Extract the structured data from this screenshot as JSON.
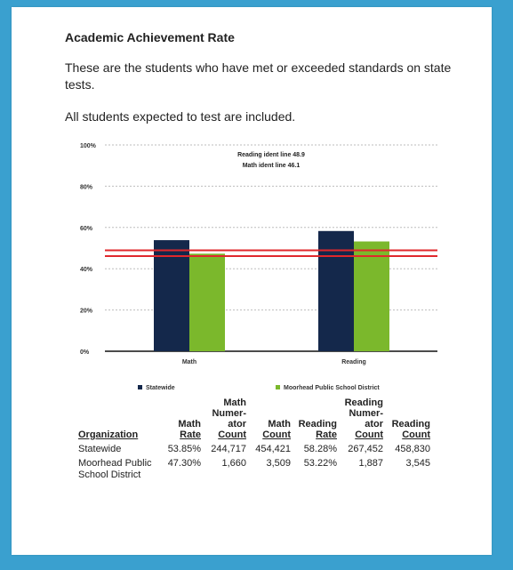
{
  "heading": "Academic Achievement Rate",
  "paragraph1": "These are the students who have met or exceeded standards on state tests.",
  "paragraph2": "All students expected to test are included.",
  "chart_data": {
    "type": "bar",
    "categories": [
      "Math",
      "Reading"
    ],
    "series": [
      {
        "name": "Statewide",
        "values": [
          53.85,
          58.28
        ],
        "color": "#14284b"
      },
      {
        "name": "Moorhead Public School District",
        "values": [
          47.3,
          53.22
        ],
        "color": "#7bb82c"
      }
    ],
    "ylim": [
      0,
      100
    ],
    "yticks": [
      0,
      20,
      40,
      60,
      80,
      100
    ],
    "ytick_labels": [
      "0%",
      "20%",
      "40%",
      "60%",
      "80%",
      "100%"
    ],
    "grid": true,
    "legend": "bottom",
    "reference_lines": [
      {
        "label": "Reading ident line 48.9",
        "value": 48.9,
        "color": "#e0282c"
      },
      {
        "label": "Math ident line 46.1",
        "value": 46.1,
        "color": "#e0282c"
      }
    ]
  },
  "table": {
    "headers": [
      "Organization",
      "Math Rate",
      "Math Numer-ator Count",
      "Math Count",
      "Reading Rate",
      "Reading Numer-ator Count",
      "Reading Count"
    ],
    "header_lines": [
      {
        "lines": [],
        "last": "Organization"
      },
      {
        "lines": [
          "Math"
        ],
        "last": "Rate"
      },
      {
        "lines": [
          "Math",
          "Numer-",
          "ator"
        ],
        "last": "Count"
      },
      {
        "lines": [
          "Math"
        ],
        "last": "Count"
      },
      {
        "lines": [
          "Reading"
        ],
        "last": "Rate"
      },
      {
        "lines": [
          "Reading",
          "Numer-",
          "ator"
        ],
        "last": "Count"
      },
      {
        "lines": [
          "Reading"
        ],
        "last": "Count"
      }
    ],
    "rows": [
      [
        "Statewide",
        "53.85%",
        "244,717",
        "454,421",
        "58.28%",
        "267,452",
        "458,830"
      ],
      [
        "Moorhead Public School District",
        "47.30%",
        "1,660",
        "3,509",
        "53.22%",
        "1,887",
        "3,545"
      ]
    ]
  }
}
